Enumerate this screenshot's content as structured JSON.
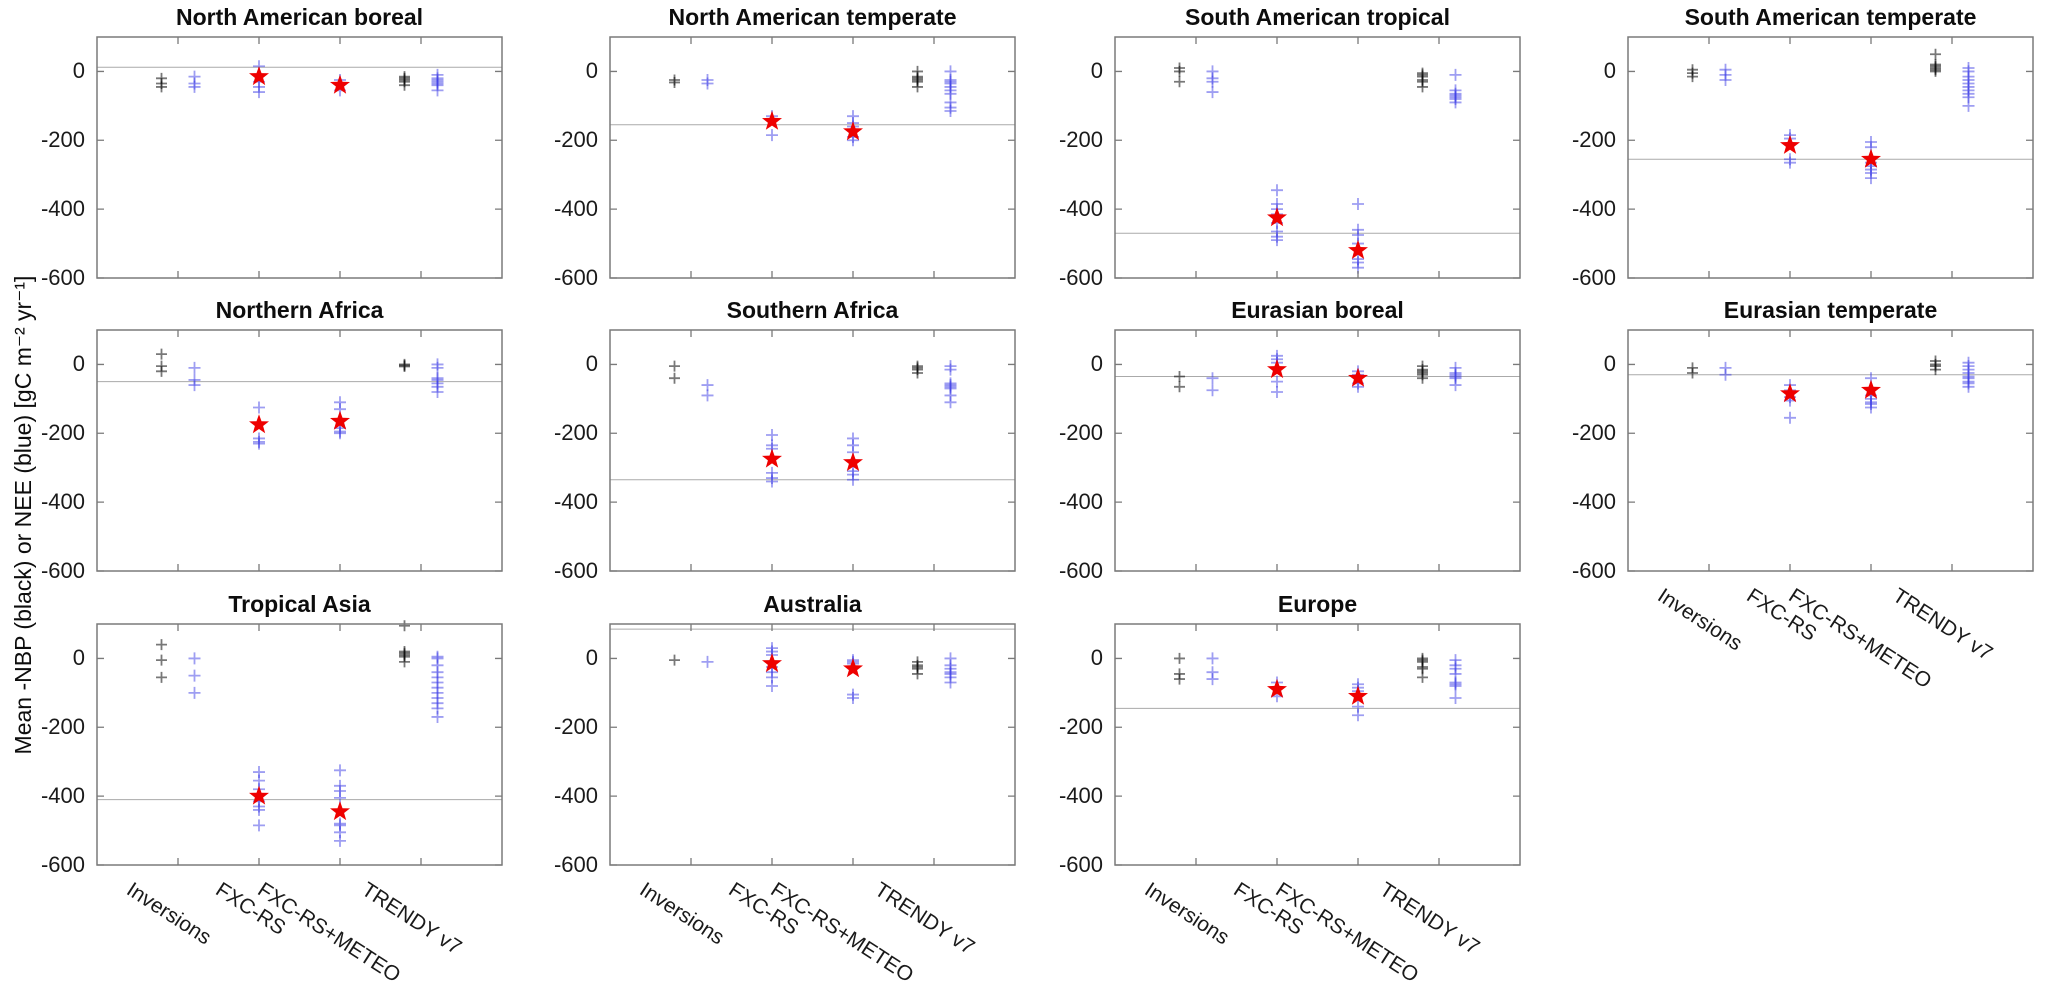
{
  "figure": {
    "ylabel": "Mean -NBP (black) or NEE (blue) [gC m⁻² yr⁻¹]",
    "colors": {
      "nbp_black_marker": "rgba(10,10,10,0.55)",
      "nee_blue_marker": "rgba(61,61,230,0.50)",
      "fluxcom_star_red": "#ee0000",
      "reference_line_gray": "#aaaaaa",
      "axis_gray": "#7a7a7a"
    }
  },
  "chart_data": {
    "type": "scatter",
    "categories": [
      "Inversions",
      "FXC-RS",
      "FXC-RS+METEO",
      "TRENDY v7"
    ],
    "ylim": [
      -600,
      100
    ],
    "yticks": [
      0,
      -200,
      -400,
      -600
    ],
    "ytick_labels": [
      "0",
      "-200",
      "-400",
      "-600"
    ],
    "marker_semantics": {
      "black_plus": "-NBP ensemble member (black)",
      "blue_plus": "NEE ensemble member (blue)",
      "red_star": "FLUXCOM ensemble mean",
      "gray_line": "reference line"
    },
    "subplots": [
      {
        "title": "North American boreal",
        "row": 0,
        "col": 0,
        "show_xticklabels": false,
        "refline": 12,
        "inversions_black": [
          -20,
          -35,
          -45
        ],
        "inversions_blue": [
          -15,
          -35,
          -45
        ],
        "fxcrs_blue": [
          15,
          -10,
          -30,
          -45,
          -60
        ],
        "fxcrs_star": -15,
        "fxcrs_meteo_blue": [
          -25,
          -55
        ],
        "fxcrs_meteo_star": -40,
        "trendy_black": [
          -15,
          -20,
          -25,
          -30,
          -40
        ],
        "trendy_blue": [
          -10,
          -20,
          -25,
          -30,
          -35,
          -40,
          -55
        ]
      },
      {
        "title": "North American temperate",
        "row": 0,
        "col": 1,
        "show_xticklabels": false,
        "refline": -155,
        "inversions_black": [
          -25,
          -32
        ],
        "inversions_blue": [
          -25,
          -35
        ],
        "fxcrs_blue": [
          -130,
          -185
        ],
        "fxcrs_star": -145,
        "fxcrs_meteo_blue": [
          -130,
          -150,
          -160,
          -190,
          -200
        ],
        "fxcrs_meteo_star": -175,
        "trendy_black": [
          0,
          -15,
          -20,
          -25,
          -30,
          -45
        ],
        "trendy_blue": [
          0,
          -25,
          -30,
          -35,
          -45,
          -55,
          -65,
          -90,
          -105,
          -115
        ]
      },
      {
        "title": "South American tropical",
        "row": 0,
        "col": 2,
        "show_xticklabels": false,
        "refline": -470,
        "inversions_black": [
          10,
          0,
          -30
        ],
        "inversions_blue": [
          0,
          -20,
          -30,
          -60
        ],
        "fxcrs_blue": [
          -345,
          -385,
          -400,
          -415,
          -440,
          -465,
          -480,
          -490
        ],
        "fxcrs_star": -425,
        "fxcrs_meteo_blue": [
          -385,
          -460,
          -475,
          -500,
          -545,
          -555,
          -570
        ],
        "fxcrs_meteo_star": -520,
        "trendy_black": [
          -5,
          -10,
          -15,
          -25,
          -30,
          -45
        ],
        "trendy_blue": [
          -10,
          -55,
          -65,
          -70,
          -75,
          -80,
          -90
        ]
      },
      {
        "title": "South American temperate",
        "row": 0,
        "col": 3,
        "show_xticklabels": false,
        "refline": -255,
        "inversions_black": [
          5,
          -5,
          -15
        ],
        "inversions_blue": [
          5,
          -10,
          -25
        ],
        "fxcrs_blue": [
          -185,
          -195,
          -255,
          -265
        ],
        "fxcrs_star": -215,
        "fxcrs_meteo_blue": [
          -205,
          -220,
          -265,
          -275,
          -285,
          -295,
          -310
        ],
        "fxcrs_meteo_star": -255,
        "trendy_black": [
          50,
          20,
          15,
          10,
          5,
          0
        ],
        "trendy_blue": [
          10,
          0,
          -15,
          -25,
          -35,
          -45,
          -55,
          -65,
          -75,
          -100
        ]
      },
      {
        "title": "Northern Africa",
        "row": 1,
        "col": 0,
        "show_xticklabels": false,
        "refline": -50,
        "inversions_black": [
          30,
          -5,
          -20
        ],
        "inversions_blue": [
          -10,
          -45,
          -60
        ],
        "fxcrs_blue": [
          -125,
          -215,
          -225,
          -230
        ],
        "fxcrs_star": -175,
        "fxcrs_meteo_blue": [
          -110,
          -130,
          -185,
          -195,
          -200
        ],
        "fxcrs_meteo_star": -165,
        "trendy_black": [
          0,
          -3,
          -6
        ],
        "trendy_blue": [
          0,
          -10,
          -40,
          -45,
          -55,
          -65,
          -80
        ]
      },
      {
        "title": "Southern Africa",
        "row": 1,
        "col": 1,
        "show_xticklabels": false,
        "refline": -335,
        "inversions_black": [
          -5,
          -40
        ],
        "inversions_blue": [
          -60,
          -90
        ],
        "fxcrs_blue": [
          -205,
          -235,
          -245,
          -315,
          -330,
          -340
        ],
        "fxcrs_star": -275,
        "fxcrs_meteo_blue": [
          -215,
          -235,
          -255,
          -310,
          -320,
          -335
        ],
        "fxcrs_meteo_star": -285,
        "trendy_black": [
          -5,
          -10,
          -15,
          -25
        ],
        "trendy_blue": [
          -5,
          -15,
          -55,
          -60,
          -65,
          -70,
          -90,
          -110
        ]
      },
      {
        "title": "Eurasian boreal",
        "row": 1,
        "col": 2,
        "show_xticklabels": false,
        "refline": -35,
        "inversions_black": [
          -35,
          -65
        ],
        "inversions_blue": [
          -40,
          -75
        ],
        "fxcrs_blue": [
          25,
          15,
          5,
          -50,
          -80
        ],
        "fxcrs_star": -15,
        "fxcrs_meteo_blue": [
          -20,
          -30,
          -55,
          -65
        ],
        "fxcrs_meteo_star": -40,
        "trendy_black": [
          -5,
          -15,
          -20,
          -25,
          -30,
          -40
        ],
        "trendy_blue": [
          -10,
          -25,
          -30,
          -35,
          -40,
          -60
        ]
      },
      {
        "title": "Eurasian temperate",
        "row": 1,
        "col": 3,
        "show_xticklabels": true,
        "refline": -30,
        "inversions_black": [
          -10,
          -25
        ],
        "inversions_blue": [
          -10,
          -30
        ],
        "fxcrs_blue": [
          -60,
          -75,
          -95,
          -105,
          -155
        ],
        "fxcrs_star": -85,
        "fxcrs_meteo_blue": [
          -40,
          -90,
          -100,
          -110,
          -115,
          -125
        ],
        "fxcrs_meteo_star": -75,
        "trendy_black": [
          10,
          0,
          -5,
          -15
        ],
        "trendy_blue": [
          5,
          -5,
          -15,
          -25,
          -35,
          -40,
          -50,
          -55,
          -65
        ]
      },
      {
        "title": "Tropical Asia",
        "row": 2,
        "col": 0,
        "show_xticklabels": true,
        "refline": -410,
        "inversions_black": [
          40,
          -5,
          -55
        ],
        "inversions_blue": [
          0,
          -50,
          -100
        ],
        "fxcrs_blue": [
          -330,
          -355,
          -380,
          -415,
          -430,
          -440,
          -485
        ],
        "fxcrs_star": -400,
        "fxcrs_meteo_blue": [
          -325,
          -370,
          -385,
          -405,
          -480,
          -485,
          -505,
          -530
        ],
        "fxcrs_meteo_star": -445,
        "trendy_black": [
          95,
          20,
          15,
          10,
          5,
          -10
        ],
        "trendy_blue": [
          5,
          0,
          -20,
          -40,
          -55,
          -70,
          -85,
          -100,
          -115,
          -130,
          -145,
          -170
        ]
      },
      {
        "title": "Australia",
        "row": 2,
        "col": 1,
        "show_xticklabels": true,
        "refline": 85,
        "inversions_black": [
          -5
        ],
        "inversions_blue": [
          -10
        ],
        "fxcrs_blue": [
          30,
          20,
          10,
          -25,
          -40,
          -55,
          -80
        ],
        "fxcrs_star": -15,
        "fxcrs_meteo_blue": [
          -5,
          -10,
          -15,
          -105,
          -115
        ],
        "fxcrs_meteo_star": -30,
        "trendy_black": [
          -10,
          -20,
          -25,
          -30,
          -45
        ],
        "trendy_blue": [
          0,
          -20,
          -30,
          -40,
          -45,
          -55,
          -70
        ]
      },
      {
        "title": "Europe",
        "row": 2,
        "col": 2,
        "show_xticklabels": true,
        "refline": -145,
        "inversions_black": [
          0,
          -45,
          -60
        ],
        "inversions_blue": [
          0,
          -40,
          -60
        ],
        "fxcrs_blue": [
          -70,
          -110
        ],
        "fxcrs_star": -90,
        "fxcrs_meteo_blue": [
          -75,
          -85,
          -95,
          -140,
          -165
        ],
        "fxcrs_meteo_star": -110,
        "trendy_black": [
          0,
          -5,
          -10,
          -25,
          -30,
          -55
        ],
        "trendy_blue": [
          -5,
          -20,
          -30,
          -45,
          -70,
          -75,
          -80,
          -115
        ]
      }
    ]
  }
}
